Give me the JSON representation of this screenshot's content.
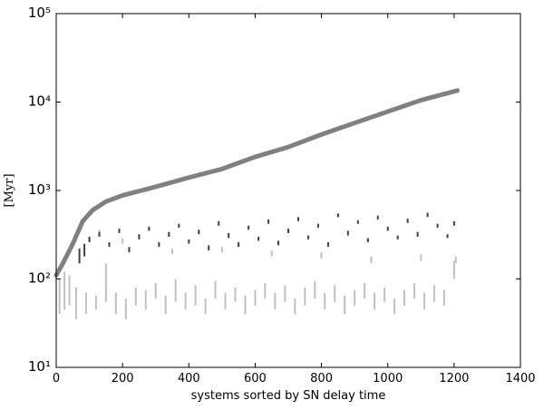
{
  "chart_data": {
    "type": "line",
    "xlabel": "systems sorted by SN delay time",
    "ylabel": "[Myr]",
    "xlim": [
      0,
      1400
    ],
    "xticks": [
      0,
      200,
      400,
      600,
      800,
      1000,
      1200,
      1400
    ],
    "ylim": [
      10,
      100000
    ],
    "log_y": true,
    "yticks": [
      {
        "value": 10,
        "label": "10¹"
      },
      {
        "value": 100,
        "label": "10²"
      },
      {
        "value": 1000,
        "label": "10³"
      },
      {
        "value": 10000,
        "label": "10⁴"
      },
      {
        "value": 100000,
        "label": "10⁵"
      }
    ],
    "series": [
      {
        "type": "range",
        "color": "#c0c0c0",
        "x": [
          10,
          25,
          40,
          60,
          90,
          120,
          150,
          180,
          210,
          240,
          270,
          300,
          330,
          360,
          390,
          420,
          450,
          480,
          510,
          540,
          570,
          600,
          630,
          660,
          690,
          720,
          750,
          780,
          810,
          840,
          870,
          900,
          930,
          960,
          990,
          1020,
          1050,
          1080,
          1110,
          1140,
          1170,
          1200,
          130,
          200,
          350,
          500,
          650,
          800,
          950,
          1100,
          1205
        ],
        "low": [
          40,
          45,
          50,
          35,
          40,
          45,
          55,
          40,
          35,
          50,
          45,
          60,
          40,
          55,
          45,
          50,
          40,
          60,
          45,
          55,
          40,
          50,
          60,
          45,
          55,
          40,
          50,
          60,
          45,
          55,
          40,
          50,
          60,
          45,
          55,
          40,
          50,
          60,
          45,
          55,
          50,
          100,
          300,
          250,
          190,
          200,
          180,
          170,
          150,
          160,
          150
        ],
        "high": [
          100,
          120,
          110,
          80,
          70,
          65,
          150,
          70,
          60,
          80,
          75,
          90,
          65,
          100,
          70,
          85,
          60,
          95,
          70,
          80,
          65,
          75,
          90,
          70,
          85,
          60,
          80,
          95,
          70,
          85,
          65,
          75,
          90,
          70,
          80,
          60,
          75,
          90,
          70,
          85,
          75,
          160,
          360,
          290,
          220,
          230,
          210,
          200,
          180,
          190,
          180
        ]
      },
      {
        "type": "range",
        "color": "#404040",
        "x": [
          70,
          85,
          100,
          130,
          160,
          190,
          220,
          250,
          280,
          310,
          340,
          370,
          400,
          430,
          460,
          490,
          520,
          550,
          580,
          610,
          640,
          670,
          700,
          730,
          760,
          790,
          820,
          850,
          880,
          910,
          940,
          970,
          1000,
          1030,
          1060,
          1090,
          1120,
          1150,
          1180,
          1200
        ],
        "low": [
          150,
          180,
          260,
          300,
          230,
          330,
          200,
          280,
          350,
          230,
          300,
          380,
          250,
          320,
          210,
          400,
          290,
          230,
          360,
          270,
          420,
          240,
          330,
          450,
          280,
          380,
          230,
          500,
          310,
          420,
          260,
          470,
          350,
          280,
          430,
          300,
          500,
          380,
          290,
          400
        ],
        "high": [
          220,
          250,
          300,
          340,
          260,
          370,
          230,
          320,
          390,
          260,
          340,
          420,
          280,
          360,
          240,
          450,
          330,
          260,
          400,
          300,
          470,
          270,
          370,
          500,
          310,
          420,
          260,
          550,
          350,
          460,
          290,
          520,
          390,
          310,
          480,
          340,
          560,
          420,
          320,
          450
        ]
      },
      {
        "type": "line",
        "color": "#808080",
        "x": [
          0,
          20,
          50,
          80,
          110,
          150,
          200,
          300,
          400,
          500,
          600,
          700,
          800,
          900,
          1000,
          1100,
          1210
        ],
        "values": [
          110,
          150,
          250,
          450,
          600,
          750,
          880,
          1100,
          1400,
          1750,
          2400,
          3100,
          4300,
          5800,
          7800,
          10500,
          13500
        ]
      }
    ]
  }
}
